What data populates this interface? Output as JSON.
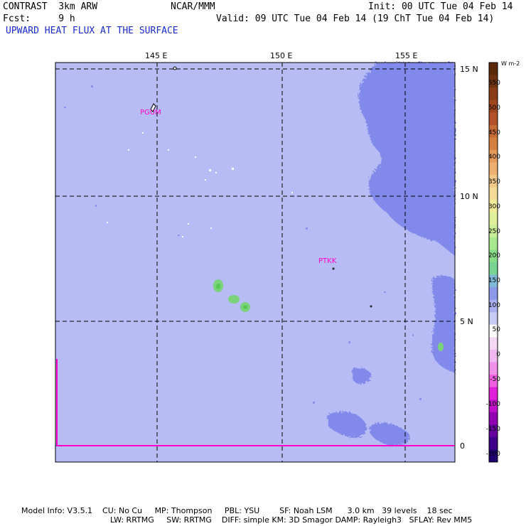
{
  "header": {
    "left_line1": "CONTRAST  3km ARW",
    "left_line2": "Fcst:     9 h",
    "center": "NCAR/MMM",
    "init": "Init: 00 UTC Tue 04 Feb 14",
    "valid": "Valid: 09 UTC Tue 04 Feb 14 (19 ChT Tue 04 Feb 14)",
    "field_title": "UPWARD HEAT FLUX AT THE SURFACE"
  },
  "map": {
    "lon_labels": [
      "145 E",
      "150 E",
      "155 E"
    ],
    "lat_labels": [
      "15 N",
      "10 N",
      "5 N",
      "0"
    ],
    "stations": [
      {
        "id": "PGUM",
        "name": "PGUM"
      },
      {
        "id": "PTKK",
        "name": "PTKK"
      }
    ],
    "background_color": "#b8bcf4",
    "convective_color": "#7f88ea",
    "high_flux_color": "#8cd88c",
    "boundary_color": "#ff00cc"
  },
  "colorbar": {
    "unit": "W m-2",
    "labels": [
      "550",
      "500",
      "450",
      "400",
      "350",
      "300",
      "250",
      "200",
      "150",
      "100",
      "50",
      "0",
      "-50",
      "-100",
      "-150",
      "-200"
    ]
  },
  "footer": {
    "line1": "Model Info: V3.5.1    CU: No Cu     MP: Thompson     PBL: YSU        SF: Noah LSM      3.0 km   39 levels    18 sec",
    "line2": "LW: RRTMG     SW: RRTMG    DIFF: simple KM: 3D Smagor DAMP: Rayleigh3   SFLAY: Rev MM5"
  }
}
